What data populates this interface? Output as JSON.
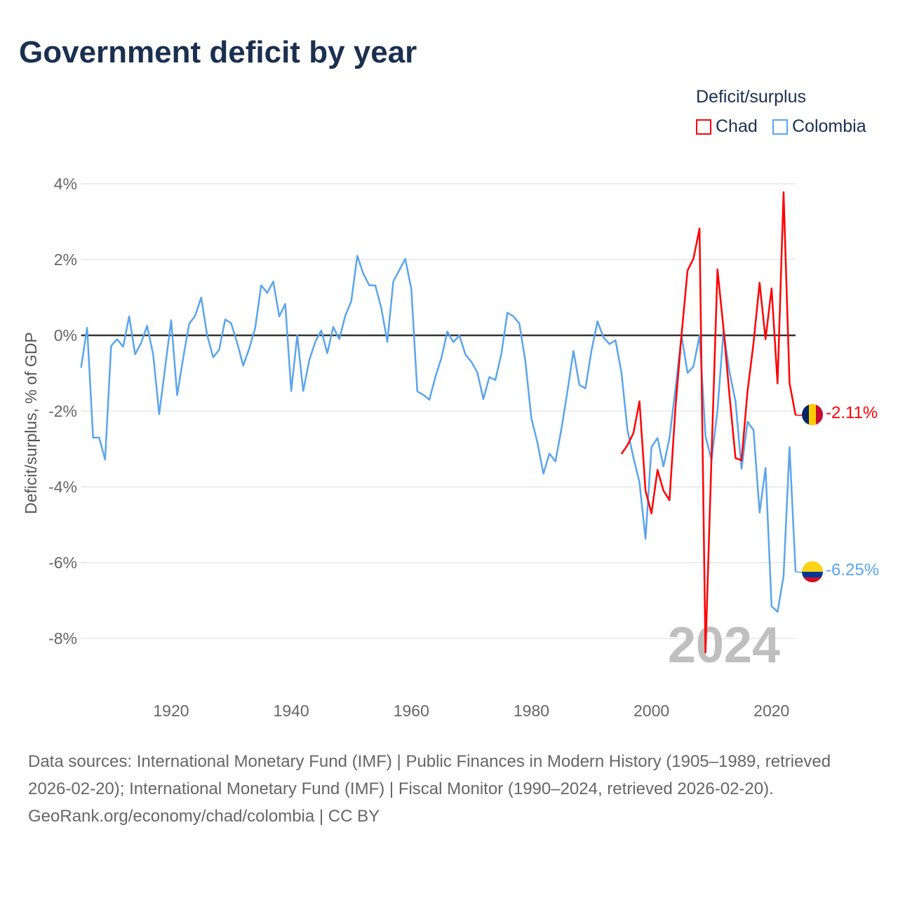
{
  "title": "Government deficit by year",
  "legend": {
    "title": "Deficit/surplus",
    "items": [
      {
        "label": "Chad",
        "color": "#ff0000"
      },
      {
        "label": "Colombia",
        "color": "#5aa5ec"
      }
    ]
  },
  "year_watermark": "2024",
  "end_labels": {
    "chad": "-2.11%",
    "colombia": "-6.25%"
  },
  "footer": {
    "sources": "Data sources: International Monetary Fund (IMF) | Public Finances in Modern History (1905–1989, retrieved 2026-02-20); International Monetary Fund (IMF) | Fiscal Monitor (1990–2024, retrieved 2026-02-20).",
    "credit": "GeoRank.org/economy/chad/colombia | CC BY"
  },
  "chart_data": {
    "type": "line",
    "ylabel": "Deficit/surplus, % of GDP",
    "xlabel": "",
    "xlim": [
      1905,
      2024
    ],
    "ylim": [
      -9.5,
      4.5
    ],
    "yticks": [
      4,
      2,
      0,
      -2,
      -4,
      -6,
      -8
    ],
    "ytick_labels": [
      "4%",
      "2%",
      "0%",
      "-2%",
      "-4%",
      "-6%",
      "-8%"
    ],
    "xticks": [
      1920,
      1940,
      1960,
      1980,
      2000,
      2020
    ],
    "xtick_labels": [
      "1920",
      "1940",
      "1960",
      "1980",
      "2000",
      "2020"
    ],
    "grid": true,
    "legend_position": "top-right",
    "series": [
      {
        "name": "Colombia",
        "color": "#5aa5ec",
        "start_year": 1905,
        "values": [
          -0.85,
          0.2,
          -2.7,
          -2.7,
          -3.28,
          -0.28,
          -0.1,
          -0.3,
          0.5,
          -0.5,
          -0.2,
          0.25,
          -0.5,
          -2.08,
          -0.85,
          0.4,
          -1.58,
          -0.6,
          0.3,
          0.52,
          1.0,
          0,
          -0.58,
          -0.38,
          0.42,
          0.32,
          -0.2,
          -0.8,
          -0.35,
          0.2,
          1.32,
          1.12,
          1.42,
          0.5,
          0.83,
          -1.47,
          0,
          -1.47,
          -0.66,
          -0.17,
          0.13,
          -0.47,
          0.22,
          -0.1,
          0.52,
          0.9,
          2.1,
          1.63,
          1.32,
          1.32,
          0.72,
          -0.17,
          1.42,
          1.72,
          2.02,
          1.22,
          -1.48,
          -1.57,
          -1.7,
          -1.1,
          -0.6,
          0.1,
          -0.18,
          0,
          -0.5,
          -0.7,
          -0.98,
          -1.68,
          -1.1,
          -1.18,
          -0.48,
          0.6,
          0.5,
          0.31,
          -0.69,
          -2.19,
          -2.83,
          -3.65,
          -3.12,
          -3.33,
          -2.47,
          -1.48,
          -0.41,
          -1.31,
          -1.4,
          -0.41,
          0.37,
          -0.05,
          -0.23,
          -0.13,
          -0.98,
          -2.5,
          -3.23,
          -3.88,
          -5.37,
          -2.95,
          -2.71,
          -3.46,
          -2.71,
          -1.41,
          0,
          -0.99,
          -0.82,
          0,
          -2.66,
          -3.29,
          -1.98,
          0.12,
          -0.98,
          -1.74,
          -3.52,
          -2.28,
          -2.5,
          -4.68,
          -3.5,
          -7.15,
          -7.3,
          -6.35,
          -2.95,
          -6.25
        ]
      },
      {
        "name": "Chad",
        "color": "#ff0000",
        "start_year": 1995,
        "values": [
          -3.13,
          -2.9,
          -2.58,
          -1.74,
          -4.1,
          -4.7,
          -3.55,
          -4.1,
          -4.35,
          -1.9,
          0,
          1.71,
          2.03,
          2.82,
          -8.37,
          -3.2,
          1.74,
          0.17,
          -1.6,
          -3.24,
          -3.3,
          -1.48,
          -0.2,
          1.39,
          -0.1,
          1.24,
          -1.27,
          3.78,
          -1.26,
          -2.11
        ]
      }
    ]
  }
}
